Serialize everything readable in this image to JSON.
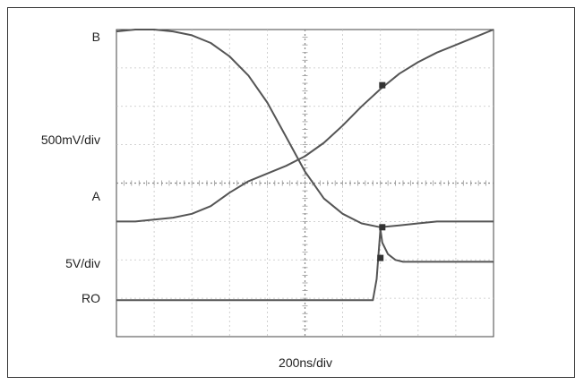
{
  "chart_data": {
    "type": "line",
    "title": "",
    "grid": true,
    "xlabel": "200ns/div",
    "channel_labels": {
      "B": "B",
      "scale_ab": "500mV/div",
      "A": "A",
      "scale_ro": "5V/div",
      "RO": "RO"
    },
    "xlim": [
      0,
      10
    ],
    "ylim": [
      0,
      8
    ],
    "series": [
      {
        "name": "B",
        "x": [
          0,
          0.5,
          1,
          1.5,
          2,
          2.5,
          3,
          3.5,
          4,
          4.5,
          5,
          5.5,
          6,
          6.5,
          7,
          7.5,
          8,
          8.5,
          9,
          9.5,
          10
        ],
        "y": [
          7.95,
          8.0,
          8.0,
          7.95,
          7.85,
          7.65,
          7.3,
          6.8,
          6.1,
          5.2,
          4.3,
          3.6,
          3.2,
          2.95,
          2.85,
          2.9,
          2.95,
          3.0,
          3.0,
          3.0,
          3.0
        ]
      },
      {
        "name": "A",
        "x": [
          0,
          0.5,
          1,
          1.5,
          2,
          2.5,
          3,
          3.5,
          4,
          4.5,
          5,
          5.5,
          6,
          6.5,
          7,
          7.5,
          8,
          8.5,
          9,
          9.5,
          10
        ],
        "y": [
          3.0,
          3.0,
          3.05,
          3.1,
          3.2,
          3.4,
          3.75,
          4.05,
          4.25,
          4.45,
          4.7,
          5.05,
          5.5,
          6.0,
          6.45,
          6.85,
          7.15,
          7.4,
          7.6,
          7.8,
          8.0
        ]
      },
      {
        "name": "RO",
        "x": [
          0,
          1,
          2,
          3,
          4,
          5,
          6,
          6.8,
          6.9,
          7.0,
          7.05,
          7.2,
          7.4,
          7.6,
          8,
          9,
          10
        ],
        "y": [
          0.95,
          0.95,
          0.95,
          0.95,
          0.95,
          0.95,
          0.95,
          0.95,
          1.5,
          2.8,
          2.45,
          2.15,
          2.0,
          1.95,
          1.95,
          1.95,
          1.95
        ]
      }
    ]
  }
}
